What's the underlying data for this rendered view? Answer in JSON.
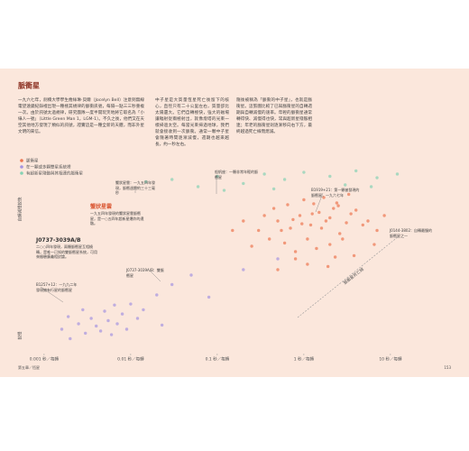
{
  "title": "脈衝星",
  "body": [
    "一九六七年，劍橋大學學生喬絲琳·貝爾（Jocelyn Bell）注意到無線電望遠鏡紀錄裡出現一種極其規律的脈衝訊號，每隔一點三三秒重複一次。由於訊號太過規律，研究團隊一度半開玩笑地將它取名為「小綠人一號」（Little Green Man 1，LGM-1）。不久之後，他們又在天空其他地方發現了類似的訊號，證實這是一種全新的天體，而非外星文明的來信。",
    "中子星是大質量恆星死亡後留下的核心，直徑只有二十公里左右，質量卻比太陽還大。它們自轉極快，強大的磁場讓輻射從兩極射出，就像燈塔的光束一樣掃過太空。每當光束掃過地球，我們就會接收到一次脈衝。通常一顆中子星會隨著時間逐漸減慢，週期也越來越長，約一秒左右。",
    "隨後被稱為「脈衝的中子星」，也就是脈衝星。這張圖比較了已知脈衝星的自轉週期與自轉減慢的速率。年輕的脈衝星通常轉得快、減慢得也快，常與超新星殘骸相連；年老的脈衝星則逐漸移向右下方，最終越過死亡線而熄滅。"
  ],
  "chart_data": {
    "type": "scatter",
    "xscale": "log",
    "yscale": "log",
    "xlim": [
      0.0005,
      50
    ],
    "ylim": [
      1e-19,
      1e-09
    ],
    "xticks": [
      {
        "value": 0.001,
        "label": "0.001 秒／每轉"
      },
      {
        "value": 0.01,
        "label": "0.01 秒／每轉"
      },
      {
        "value": 0.1,
        "label": "0.1 秒／每轉"
      },
      {
        "value": 1,
        "label": "1 秒／每轉"
      },
      {
        "value": 10,
        "label": "10 秒／每轉"
      }
    ],
    "ylabel_top": "自轉減慢較快",
    "ylabel_bottom": "較慢",
    "legend": "upper left",
    "death_line_label": "脈衝星死亡線",
    "series": [
      {
        "name": "脈衝星",
        "color": "#ec7650",
        "x": [
          0.3,
          0.5,
          0.7,
          0.9,
          1.2,
          1.5,
          1.8,
          2.2,
          2.6,
          3.1,
          0.4,
          0.6,
          0.8,
          1.1,
          1.4,
          2.0,
          2.8,
          4.0,
          5.5,
          7.0,
          0.35,
          0.45,
          0.65,
          1.0,
          1.3,
          1.7,
          2.4,
          3.5,
          4.8,
          6.5,
          0.25,
          0.55,
          0.75,
          0.95,
          1.25,
          1.6,
          2.0,
          2.5,
          3.3,
          8.5,
          1.1,
          0.8,
          2.3,
          0.2,
          0.15,
          0.5,
          1.9,
          3.8
        ],
        "values": [
          3e-13,
          1e-12,
          4e-13,
          2e-12,
          6e-13,
          3e-12,
          1e-12,
          5e-12,
          2e-13,
          8e-13,
          1e-13,
          6e-14,
          2e-14,
          1e-13,
          3e-14,
          5e-14,
          1e-13,
          4e-12,
          1e-12,
          3e-13,
          2e-12,
          5e-12,
          8e-12,
          1.5e-11,
          9e-12,
          2e-11,
          1e-11,
          2.5e-12,
          6e-13,
          5e-14,
          4e-14,
          3e-13,
          1.2e-12,
          7e-13,
          2.5e-12,
          4e-13,
          1.5e-12,
          7e-12,
          3e-11,
          2e-12,
          4e-15,
          8e-15,
          1e-14,
          1e-12,
          3e-13,
          2e-15,
          3e-15,
          1.2e-14
        ]
      },
      {
        "name": "在一顆或多顆雙星系統裡",
        "color": "#a594e0",
        "x": [
          0.0016,
          0.002,
          0.0025,
          0.003,
          0.0035,
          0.004,
          0.0045,
          0.005,
          0.0055,
          0.006,
          0.007,
          0.008,
          0.009,
          0.01,
          0.012,
          0.014,
          0.0019,
          0.0028,
          0.0065,
          0.02,
          0.03,
          0.05,
          0.08,
          0.2,
          0.5,
          0.023
        ],
        "values": [
          1e-18,
          3e-19,
          2e-18,
          6e-19,
          4e-18,
          1.5e-18,
          8e-19,
          1e-17,
          3e-18,
          5e-19,
          2e-18,
          7e-18,
          1e-18,
          2.5e-17,
          4e-18,
          1.2e-17,
          5e-18,
          1.2e-17,
          2.2e-17,
          8e-17,
          3e-16,
          1e-15,
          6e-17,
          2e-15,
          8e-15,
          1.7e-18
        ]
      },
      {
        "name": "有超新星殘骸與其相連的脈衝星",
        "color": "#86d2b4",
        "x": [
          0.015,
          0.03,
          0.06,
          0.1,
          0.2,
          0.35,
          0.6,
          1.0,
          2.0,
          4.0,
          7.0,
          12,
          0.12,
          0.45,
          3.0,
          6.0
        ],
        "values": [
          1.5e-10,
          2e-10,
          8e-11,
          3e-10,
          1.2e-10,
          4e-10,
          2e-10,
          5e-10,
          3e-10,
          6e-10,
          2.5e-10,
          4e-10,
          5e-11,
          6e-11,
          1e-10,
          8e-11
        ]
      }
    ],
    "annotations": [
      {
        "title": "蟹狀星雲",
        "text": "一九五四年發現的蟹狀星雲脈衝星，是一○五四年超新星爆炸的遺骸。"
      },
      {
        "title": "J0737-3039A/B",
        "text": "二○○四年發現，兩顆脈衝星互相繞轉，是唯一已知的雙脈衝星系統，可用來檢驗廣義相對論。"
      },
      {
        "title": "",
        "text": "蟹狀星雲：一九五四年發現，脈衝週期約三十三毫秒"
      },
      {
        "title": "",
        "text": "船帆座：一顆非常年輕的脈衝星"
      },
      {
        "title": "",
        "text": "B1919+21：第一顆被發現的脈衝星，一九六七年"
      },
      {
        "title": "",
        "text": "J0737-3039A/B：雙脈衝星"
      },
      {
        "title": "",
        "text": "B1257+12：一九九二年發現擁有行星的脈衝星"
      },
      {
        "title": "",
        "text": "J0144-3802：自轉最慢的脈衝星之一"
      }
    ]
  },
  "footer": {
    "section": "第五章／恆星",
    "page": "153"
  }
}
